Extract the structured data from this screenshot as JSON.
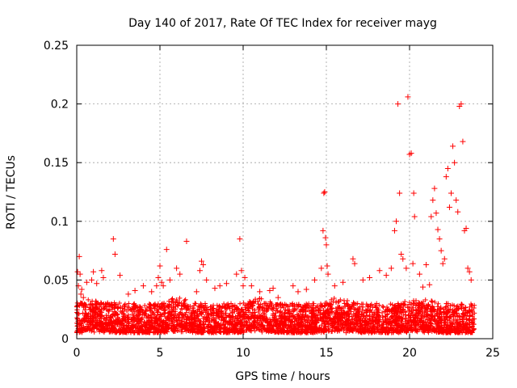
{
  "chart_data": {
    "type": "scatter",
    "title": "Day 140 of 2017, Rate Of TEC Index for receiver mayg",
    "xlabel": "GPS time / hours",
    "ylabel": "ROTI / TECUs",
    "xlim": [
      0,
      25
    ],
    "ylim": [
      0,
      0.25
    ],
    "x_ticks": [
      0,
      5,
      10,
      15,
      20,
      25
    ],
    "y_ticks": [
      0,
      0.05,
      0.1,
      0.15,
      0.2,
      0.25
    ],
    "x_tick_labels": [
      "0",
      "5",
      "10",
      "15",
      "20",
      "25"
    ],
    "y_tick_labels": [
      "0",
      "0.05",
      "0.1",
      "0.15",
      "0.2",
      "0.25"
    ],
    "grid": true,
    "marker": "+",
    "marker_color": "#ff0000",
    "baseline_band": {
      "x_range": [
        0,
        23.9
      ],
      "y_range": [
        0.005,
        0.03
      ]
    },
    "series": [
      {
        "name": "ROTI",
        "x": [
          0.05,
          0.1,
          0.15,
          0.2,
          0.25,
          0.3,
          0.4,
          0.6,
          0.9,
          1.0,
          1.2,
          1.5,
          1.6,
          2.2,
          2.3,
          2.6,
          3.1,
          3.5,
          4.0,
          4.5,
          4.8,
          4.9,
          5.0,
          5.1,
          5.2,
          5.4,
          5.6,
          6.0,
          6.2,
          6.6,
          7.2,
          7.4,
          7.5,
          7.6,
          7.8,
          8.3,
          8.6,
          9.0,
          9.6,
          9.8,
          9.9,
          10.0,
          10.1,
          10.5,
          11.0,
          11.6,
          11.8,
          12.1,
          13.0,
          13.3,
          13.8,
          14.3,
          14.7,
          14.8,
          14.85,
          14.9,
          14.95,
          15.0,
          15.05,
          15.1,
          15.5,
          16.0,
          16.6,
          16.7,
          17.2,
          17.6,
          18.2,
          18.6,
          18.9,
          19.1,
          19.2,
          19.3,
          19.4,
          19.5,
          19.6,
          19.8,
          19.9,
          20.0,
          20.1,
          20.2,
          20.25,
          20.3,
          20.6,
          20.8,
          21.0,
          21.2,
          21.3,
          21.4,
          21.5,
          21.6,
          21.7,
          21.8,
          21.9,
          22.0,
          22.1,
          22.2,
          22.3,
          22.4,
          22.5,
          22.6,
          22.7,
          22.8,
          22.9,
          23.0,
          23.1,
          23.2,
          23.3,
          23.4,
          23.5,
          23.6,
          23.7
        ],
        "y": [
          0.057,
          0.045,
          0.07,
          0.055,
          0.038,
          0.042,
          0.035,
          0.048,
          0.05,
          0.057,
          0.047,
          0.058,
          0.052,
          0.085,
          0.072,
          0.054,
          0.038,
          0.041,
          0.045,
          0.04,
          0.045,
          0.052,
          0.062,
          0.048,
          0.045,
          0.076,
          0.05,
          0.06,
          0.055,
          0.083,
          0.04,
          0.058,
          0.066,
          0.063,
          0.05,
          0.043,
          0.045,
          0.047,
          0.055,
          0.085,
          0.058,
          0.045,
          0.052,
          0.045,
          0.04,
          0.041,
          0.043,
          0.035,
          0.045,
          0.04,
          0.042,
          0.05,
          0.06,
          0.092,
          0.124,
          0.125,
          0.086,
          0.08,
          0.062,
          0.055,
          0.045,
          0.048,
          0.068,
          0.064,
          0.05,
          0.052,
          0.058,
          0.054,
          0.06,
          0.092,
          0.1,
          0.2,
          0.124,
          0.072,
          0.068,
          0.06,
          0.206,
          0.157,
          0.158,
          0.064,
          0.124,
          0.104,
          0.055,
          0.044,
          0.063,
          0.046,
          0.104,
          0.118,
          0.128,
          0.107,
          0.093,
          0.085,
          0.075,
          0.064,
          0.068,
          0.138,
          0.145,
          0.112,
          0.124,
          0.164,
          0.15,
          0.118,
          0.108,
          0.198,
          0.2,
          0.168,
          0.092,
          0.094,
          0.06,
          0.057,
          0.05
        ]
      }
    ]
  }
}
